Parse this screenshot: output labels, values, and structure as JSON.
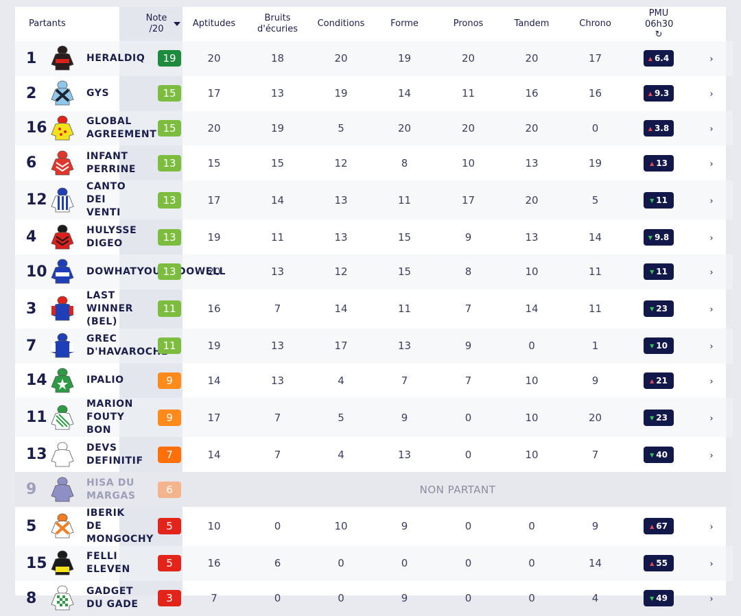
{
  "headers": {
    "partants": "Partants",
    "note": "Note /20",
    "aptitudes": "Aptitudes",
    "bruits": "Bruits d'écuries",
    "conditions": "Conditions",
    "forme": "Forme",
    "pronos": "Pronos",
    "tandem": "Tandem",
    "chrono": "Chrono",
    "pmu": "PMU 06h30",
    "refresh_icon": "↻"
  },
  "note_colors": {
    "dark_green": "#1e8a3e",
    "green": "#7cbc3f",
    "orange": "#ff8a1c",
    "dark_orange": "#ff6f0a",
    "light_orange": "#f4b48e",
    "red": "#e3241b"
  },
  "non_partant_label": "NON PARTANT",
  "chevron": "›",
  "runners": [
    {
      "num": "1",
      "name": "HERALDIQ",
      "note": "19",
      "note_color": "#1e8a3e",
      "silk": {
        "body": "#2b1e1e",
        "stripe": "#d8221c",
        "cap": "#2b1e1e",
        "pattern": "band"
      },
      "aptitudes": "20",
      "bruits": "18",
      "conditions": "20",
      "forme": "19",
      "pronos": "20",
      "tandem": "20",
      "chrono": "17",
      "pmu": "6.4",
      "pmu_dir": "up"
    },
    {
      "num": "2",
      "name": "GYS",
      "note": "15",
      "note_color": "#7cbc3f",
      "silk": {
        "body": "#8ec7ea",
        "stripe": "#1b2330",
        "cap": "#8ec7ea",
        "pattern": "cross"
      },
      "aptitudes": "17",
      "bruits": "13",
      "conditions": "19",
      "forme": "14",
      "pronos": "11",
      "tandem": "16",
      "chrono": "16",
      "pmu": "9.3",
      "pmu_dir": "up"
    },
    {
      "num": "16",
      "name": "GLOBAL AGREEMENT",
      "note": "15",
      "note_color": "#7cbc3f",
      "silk": {
        "body": "#f5e21a",
        "stripe": "#e0241c",
        "cap": "#e0241c",
        "pattern": "dots"
      },
      "aptitudes": "20",
      "bruits": "19",
      "conditions": "5",
      "forme": "20",
      "pronos": "20",
      "tandem": "20",
      "chrono": "0",
      "pmu": "3.8",
      "pmu_dir": "up"
    },
    {
      "num": "6",
      "name": "INFANT PERRINE",
      "note": "13",
      "note_color": "#7cbc3f",
      "silk": {
        "body": "#e2352c",
        "stripe": "#ffffff",
        "cap": "#e2352c",
        "pattern": "chevrons"
      },
      "aptitudes": "15",
      "bruits": "15",
      "conditions": "12",
      "forme": "8",
      "pronos": "10",
      "tandem": "13",
      "chrono": "19",
      "pmu": "13",
      "pmu_dir": "up"
    },
    {
      "num": "12",
      "name": "CANTO DEI VENTI",
      "note": "13",
      "note_color": "#7cbc3f",
      "silk": {
        "body": "#ffffff",
        "stripe": "#1f3fb8",
        "cap": "#1f3fb8",
        "pattern": "vstripes"
      },
      "aptitudes": "17",
      "bruits": "14",
      "conditions": "13",
      "forme": "11",
      "pronos": "17",
      "tandem": "20",
      "chrono": "5",
      "pmu": "11",
      "pmu_dir": "down"
    },
    {
      "num": "4",
      "name": "HULYSSE DIGEO",
      "note": "13",
      "note_color": "#7cbc3f",
      "silk": {
        "body": "#d8201e",
        "stripe": "#1b1b1b",
        "cap": "#1b1b1b",
        "pattern": "chevrons"
      },
      "aptitudes": "19",
      "bruits": "11",
      "conditions": "13",
      "forme": "15",
      "pronos": "9",
      "tandem": "13",
      "chrono": "14",
      "pmu": "9.8",
      "pmu_dir": "down"
    },
    {
      "num": "10",
      "name": "DOWHATYOUDODOWELL",
      "note": "13",
      "note_color": "#7cbc3f",
      "silk": {
        "body": "#1f3fb8",
        "stripe": "#ffffff",
        "cap": "#1f3fb8",
        "pattern": "band"
      },
      "aptitudes": "20",
      "bruits": "13",
      "conditions": "12",
      "forme": "15",
      "pronos": "8",
      "tandem": "10",
      "chrono": "11",
      "pmu": "11",
      "pmu_dir": "down"
    },
    {
      "num": "3",
      "name": "LAST WINNER (BEL)",
      "note": "11",
      "note_color": "#7cbc3f",
      "silk": {
        "body": "#1f3fb8",
        "stripe": "#e0241c",
        "cap": "#e0241c",
        "pattern": "sleeves"
      },
      "aptitudes": "16",
      "bruits": "7",
      "conditions": "14",
      "forme": "11",
      "pronos": "7",
      "tandem": "14",
      "chrono": "11",
      "pmu": "23",
      "pmu_dir": "down"
    },
    {
      "num": "7",
      "name": "GREC D'HAVAROCHE",
      "note": "11",
      "note_color": "#7cbc3f",
      "silk": {
        "body": "#1f3fb8",
        "stripe": "#ffffff",
        "cap": "#1f3fb8",
        "pattern": "sleeves"
      },
      "aptitudes": "19",
      "bruits": "13",
      "conditions": "17",
      "forme": "13",
      "pronos": "9",
      "tandem": "0",
      "chrono": "1",
      "pmu": "10",
      "pmu_dir": "down"
    },
    {
      "num": "14",
      "name": "IPALIO",
      "note": "9",
      "note_color": "#ff8a1c",
      "silk": {
        "body": "#2e9a45",
        "stripe": "#ffffff",
        "cap": "#2e9a45",
        "pattern": "star"
      },
      "aptitudes": "14",
      "bruits": "13",
      "conditions": "4",
      "forme": "7",
      "pronos": "7",
      "tandem": "10",
      "chrono": "9",
      "pmu": "21",
      "pmu_dir": "up"
    },
    {
      "num": "11",
      "name": "MARION FOUTY BON",
      "note": "9",
      "note_color": "#ff8a1c",
      "silk": {
        "body": "#ffffff",
        "stripe": "#2e9a45",
        "cap": "#2e9a45",
        "pattern": "diagonal"
      },
      "aptitudes": "17",
      "bruits": "7",
      "conditions": "5",
      "forme": "9",
      "pronos": "0",
      "tandem": "10",
      "chrono": "20",
      "pmu": "23",
      "pmu_dir": "down"
    },
    {
      "num": "13",
      "name": "DEVS DEFINITIF",
      "note": "7",
      "note_color": "#ff6f0a",
      "silk": {
        "body": "#ffffff",
        "stripe": "#ffffff",
        "cap": "#ffffff",
        "pattern": "plain"
      },
      "aptitudes": "14",
      "bruits": "7",
      "conditions": "4",
      "forme": "13",
      "pronos": "0",
      "tandem": "10",
      "chrono": "7",
      "pmu": "40",
      "pmu_dir": "down"
    },
    {
      "num": "9",
      "name": "HISA DU MARGAS",
      "note": "6",
      "note_color": "#f4b48e",
      "silk": {
        "body": "#8e8fc4",
        "stripe": "#8e8fc4",
        "cap": "#8e8fc4",
        "pattern": "plain"
      },
      "non_partant": true
    },
    {
      "num": "5",
      "name": "IBERIK DE MONGOCHY",
      "note": "5",
      "note_color": "#e3241b",
      "silk": {
        "body": "#ffffff",
        "stripe": "#f07d22",
        "cap": "#f07d22",
        "pattern": "cross"
      },
      "aptitudes": "10",
      "bruits": "0",
      "conditions": "10",
      "forme": "9",
      "pronos": "0",
      "tandem": "0",
      "chrono": "9",
      "pmu": "67",
      "pmu_dir": "up"
    },
    {
      "num": "15",
      "name": "FELLI ELEVEN",
      "note": "5",
      "note_color": "#e3241b",
      "silk": {
        "body": "#1b1b1b",
        "stripe": "#f5e21a",
        "cap": "#1b1b1b",
        "pattern": "hoop"
      },
      "aptitudes": "16",
      "bruits": "6",
      "conditions": "0",
      "forme": "0",
      "pronos": "0",
      "tandem": "0",
      "chrono": "14",
      "pmu": "55",
      "pmu_dir": "up"
    },
    {
      "num": "8",
      "name": "GADGET DU GADE",
      "note": "3",
      "note_color": "#e3241b",
      "silk": {
        "body": "#ffffff",
        "stripe": "#2e9a45",
        "cap": "#ffffff",
        "pattern": "checks"
      },
      "aptitudes": "7",
      "bruits": "0",
      "conditions": "0",
      "forme": "9",
      "pronos": "0",
      "tandem": "0",
      "chrono": "4",
      "pmu": "49",
      "pmu_dir": "down"
    }
  ]
}
